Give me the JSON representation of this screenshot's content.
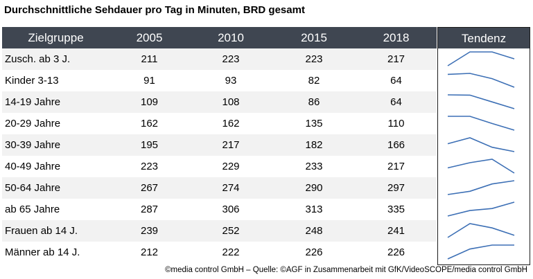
{
  "title": "Durchschnittliche Sehdauer pro Tag in Minuten, BRD gesamt",
  "footer": "©media control GmbH – Quelle: ©AGF in Zusammenarbeit mit GfK/VideoSCOPE/media control GmbH",
  "spark_color": "#3c6fb5",
  "header_color": "#3f4651",
  "chart_data": {
    "type": "table",
    "title": "Durchschnittliche Sehdauer pro Tag in Minuten, BRD gesamt",
    "columns": [
      "Zielgruppe",
      "2005",
      "2010",
      "2015",
      "2018",
      "Tendenz"
    ],
    "years": [
      "2005",
      "2010",
      "2015",
      "2018"
    ],
    "rows": [
      {
        "group": "Zusch. ab 3 J.",
        "values": [
          211,
          223,
          223,
          217
        ]
      },
      {
        "group": "Kinder 3-13",
        "values": [
          91,
          93,
          82,
          64
        ]
      },
      {
        "group": "14-19 Jahre",
        "values": [
          109,
          108,
          86,
          64
        ]
      },
      {
        "group": "20-29 Jahre",
        "values": [
          162,
          162,
          135,
          110
        ]
      },
      {
        "group": "30-39 Jahre",
        "values": [
          195,
          217,
          182,
          166
        ]
      },
      {
        "group": "40-49 Jahre",
        "values": [
          223,
          229,
          233,
          217
        ]
      },
      {
        "group": "50-64 Jahre",
        "values": [
          267,
          274,
          290,
          297
        ]
      },
      {
        "group": "ab 65 Jahre",
        "values": [
          287,
          306,
          313,
          335
        ]
      },
      {
        "group": "Frauen ab 14 J.",
        "values": [
          239,
          252,
          248,
          241
        ]
      },
      {
        "group": "Männer ab 14 J.",
        "values": [
          212,
          222,
          226,
          226
        ]
      }
    ]
  }
}
